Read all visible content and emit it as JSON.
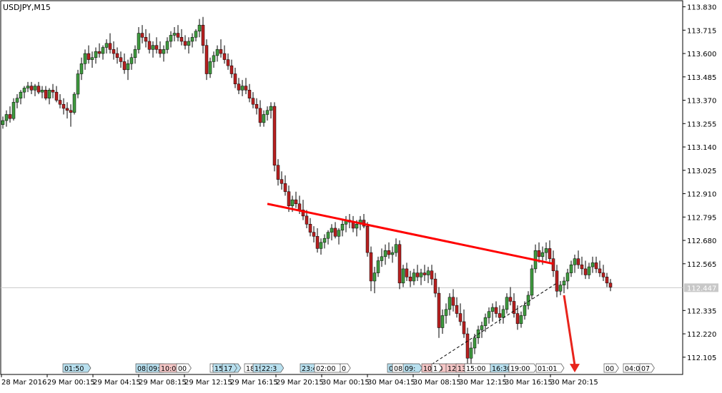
{
  "window": {
    "symbol_label": "USDJPY,M15"
  },
  "chart_data": {
    "type": "candlestick",
    "symbol": "USDJPY",
    "timeframe": "M15",
    "y_ticks": [
      "113.830",
      "113.715",
      "113.600",
      "113.485",
      "113.370",
      "113.255",
      "113.140",
      "113.025",
      "112.910",
      "112.795",
      "112.680",
      "112.565",
      "112.447",
      "112.335",
      "112.220",
      "112.105"
    ],
    "ylim": [
      112.02,
      113.86
    ],
    "current_price": "112.447",
    "x_ticks": [
      "28 Mar 2016",
      "29 Mar 00:15",
      "29 Mar 04:15",
      "29 Mar 08:15",
      "29 Mar 12:15",
      "29 Mar 16:15",
      "29 Mar 20:15",
      "30 Mar 00:15",
      "30 Mar 04:15",
      "30 Mar 08:15",
      "30 Mar 12:15",
      "30 Mar 16:15",
      "30 Mar 20:15"
    ],
    "candles": [
      [
        113.25,
        113.29,
        113.23,
        113.27
      ],
      [
        113.27,
        113.32,
        113.24,
        113.3
      ],
      [
        113.3,
        113.34,
        113.26,
        113.28
      ],
      [
        113.28,
        113.38,
        113.27,
        113.36
      ],
      [
        113.36,
        113.4,
        113.33,
        113.38
      ],
      [
        113.38,
        113.42,
        113.35,
        113.41
      ],
      [
        113.41,
        113.44,
        113.38,
        113.43
      ],
      [
        113.43,
        113.46,
        113.41,
        113.44
      ],
      [
        113.44,
        113.46,
        113.4,
        113.42
      ],
      [
        113.42,
        113.45,
        113.39,
        113.44
      ],
      [
        113.44,
        113.46,
        113.4,
        113.41
      ],
      [
        113.41,
        113.44,
        113.38,
        113.42
      ],
      [
        113.42,
        113.44,
        113.37,
        113.38
      ],
      [
        113.38,
        113.43,
        113.35,
        113.42
      ],
      [
        113.42,
        113.45,
        113.38,
        113.41
      ],
      [
        113.41,
        113.44,
        113.36,
        113.37
      ],
      [
        113.37,
        113.4,
        113.33,
        113.35
      ],
      [
        113.35,
        113.38,
        113.3,
        113.33
      ],
      [
        113.33,
        113.36,
        113.28,
        113.32
      ],
      [
        113.32,
        113.35,
        113.24,
        113.31
      ],
      [
        113.31,
        113.41,
        113.3,
        113.4
      ],
      [
        113.4,
        113.52,
        113.38,
        113.5
      ],
      [
        113.5,
        113.58,
        113.47,
        113.55
      ],
      [
        113.55,
        113.62,
        113.52,
        113.6
      ],
      [
        113.6,
        113.64,
        113.55,
        113.57
      ],
      [
        113.57,
        113.61,
        113.53,
        113.58
      ],
      [
        113.58,
        113.63,
        113.55,
        113.61
      ],
      [
        113.61,
        113.65,
        113.58,
        113.6
      ],
      [
        113.6,
        113.64,
        113.57,
        113.63
      ],
      [
        113.63,
        113.67,
        113.6,
        113.65
      ],
      [
        113.65,
        113.7,
        113.6,
        113.62
      ],
      [
        113.62,
        113.66,
        113.57,
        113.6
      ],
      [
        113.6,
        113.63,
        113.55,
        113.58
      ],
      [
        113.58,
        113.61,
        113.53,
        113.56
      ],
      [
        113.56,
        113.6,
        113.5,
        113.52
      ],
      [
        113.52,
        113.57,
        113.47,
        113.55
      ],
      [
        113.55,
        113.6,
        113.52,
        113.58
      ],
      [
        113.58,
        113.64,
        113.55,
        113.62
      ],
      [
        113.62,
        113.73,
        113.6,
        113.7
      ],
      [
        113.7,
        113.74,
        113.65,
        113.68
      ],
      [
        113.68,
        113.72,
        113.63,
        113.66
      ],
      [
        113.66,
        113.7,
        113.6,
        113.62
      ],
      [
        113.62,
        113.66,
        113.58,
        113.64
      ],
      [
        113.64,
        113.68,
        113.6,
        113.62
      ],
      [
        113.62,
        113.66,
        113.58,
        113.6
      ],
      [
        113.6,
        113.64,
        113.56,
        113.62
      ],
      [
        113.62,
        113.68,
        113.6,
        113.66
      ],
      [
        113.66,
        113.71,
        113.63,
        113.69
      ],
      [
        113.69,
        113.73,
        113.66,
        113.7
      ],
      [
        113.7,
        113.74,
        113.66,
        113.68
      ],
      [
        113.68,
        113.72,
        113.64,
        113.66
      ],
      [
        113.66,
        113.69,
        113.62,
        113.64
      ],
      [
        113.64,
        113.68,
        113.6,
        113.66
      ],
      [
        113.66,
        113.7,
        113.63,
        113.68
      ],
      [
        113.68,
        113.72,
        113.66,
        113.71
      ],
      [
        113.71,
        113.77,
        113.68,
        113.74
      ],
      [
        113.74,
        113.78,
        113.6,
        113.64
      ],
      [
        113.64,
        113.67,
        113.47,
        113.5
      ],
      [
        113.5,
        113.58,
        113.48,
        113.56
      ],
      [
        113.56,
        113.61,
        113.53,
        113.59
      ],
      [
        113.59,
        113.64,
        113.56,
        113.62
      ],
      [
        113.62,
        113.67,
        113.58,
        113.6
      ],
      [
        113.6,
        113.64,
        113.55,
        113.57
      ],
      [
        113.57,
        113.6,
        113.52,
        113.54
      ],
      [
        113.54,
        113.57,
        113.48,
        113.5
      ],
      [
        113.5,
        113.53,
        113.43,
        113.45
      ],
      [
        113.45,
        113.48,
        113.4,
        113.42
      ],
      [
        113.42,
        113.47,
        113.39,
        113.44
      ],
      [
        113.44,
        113.48,
        113.4,
        113.42
      ],
      [
        113.42,
        113.45,
        113.36,
        113.38
      ],
      [
        113.38,
        113.41,
        113.33,
        113.35
      ],
      [
        113.35,
        113.38,
        113.3,
        113.33
      ],
      [
        113.33,
        113.37,
        113.24,
        113.26
      ],
      [
        113.26,
        113.32,
        113.24,
        113.3
      ],
      [
        113.3,
        113.34,
        113.27,
        113.32
      ],
      [
        113.32,
        113.36,
        113.28,
        113.34
      ],
      [
        113.34,
        113.36,
        113.02,
        113.05
      ],
      [
        113.05,
        113.08,
        112.95,
        112.98
      ],
      [
        112.98,
        113.02,
        112.93,
        112.96
      ],
      [
        112.96,
        113.0,
        112.9,
        112.92
      ],
      [
        112.92,
        112.95,
        112.82,
        112.85
      ],
      [
        112.85,
        112.9,
        112.82,
        112.88
      ],
      [
        112.88,
        112.92,
        112.84,
        112.86
      ],
      [
        112.86,
        112.9,
        112.81,
        112.83
      ],
      [
        112.83,
        112.88,
        112.78,
        112.8
      ],
      [
        112.8,
        112.83,
        112.74,
        112.76
      ],
      [
        112.76,
        112.79,
        112.7,
        112.72
      ],
      [
        112.72,
        112.75,
        112.67,
        112.7
      ],
      [
        112.7,
        112.74,
        112.62,
        112.64
      ],
      [
        112.64,
        112.69,
        112.61,
        112.67
      ],
      [
        112.67,
        112.71,
        112.64,
        112.69
      ],
      [
        112.69,
        112.73,
        112.66,
        112.72
      ],
      [
        112.72,
        112.76,
        112.68,
        112.74
      ],
      [
        112.74,
        112.77,
        112.69,
        112.7
      ],
      [
        112.7,
        112.74,
        112.66,
        112.73
      ],
      [
        112.73,
        112.78,
        112.7,
        112.76
      ],
      [
        112.76,
        112.8,
        112.72,
        112.78
      ],
      [
        112.78,
        112.81,
        112.74,
        112.77
      ],
      [
        112.77,
        112.8,
        112.72,
        112.74
      ],
      [
        112.74,
        112.78,
        112.7,
        112.76
      ],
      [
        112.76,
        112.8,
        112.73,
        112.78
      ],
      [
        112.78,
        112.81,
        112.74,
        112.75
      ],
      [
        112.75,
        112.77,
        112.6,
        112.62
      ],
      [
        112.62,
        112.65,
        112.43,
        112.48
      ],
      [
        112.48,
        112.55,
        112.42,
        112.52
      ],
      [
        112.52,
        112.6,
        112.5,
        112.58
      ],
      [
        112.58,
        112.64,
        112.55,
        112.6
      ],
      [
        112.6,
        112.66,
        112.56,
        112.63
      ],
      [
        112.63,
        112.67,
        112.59,
        112.61
      ],
      [
        112.61,
        112.65,
        112.57,
        112.62
      ],
      [
        112.62,
        112.69,
        112.6,
        112.66
      ],
      [
        112.66,
        112.68,
        112.44,
        112.47
      ],
      [
        112.47,
        112.56,
        112.45,
        112.54
      ],
      [
        112.54,
        112.57,
        112.48,
        112.5
      ],
      [
        112.5,
        112.53,
        112.45,
        112.48
      ],
      [
        112.48,
        112.54,
        112.46,
        112.52
      ],
      [
        112.52,
        112.56,
        112.48,
        112.5
      ],
      [
        112.5,
        112.54,
        112.46,
        112.52
      ],
      [
        112.52,
        112.56,
        112.48,
        112.51
      ],
      [
        112.51,
        112.55,
        112.47,
        112.53
      ],
      [
        112.53,
        112.56,
        112.46,
        112.49
      ],
      [
        112.49,
        112.52,
        112.4,
        112.42
      ],
      [
        112.42,
        112.45,
        112.2,
        112.25
      ],
      [
        112.25,
        112.34,
        112.22,
        112.31
      ],
      [
        112.31,
        112.37,
        112.27,
        112.34
      ],
      [
        112.34,
        112.42,
        112.31,
        112.4
      ],
      [
        112.4,
        112.44,
        112.33,
        112.36
      ],
      [
        112.36,
        112.4,
        112.3,
        112.32
      ],
      [
        112.32,
        112.37,
        112.26,
        112.28
      ],
      [
        112.28,
        112.34,
        112.2,
        112.22
      ],
      [
        112.22,
        112.25,
        112.07,
        112.1
      ],
      [
        112.1,
        112.18,
        112.07,
        112.15
      ],
      [
        112.15,
        112.22,
        112.12,
        112.2
      ],
      [
        112.2,
        112.26,
        112.17,
        112.24
      ],
      [
        112.24,
        112.28,
        112.2,
        112.26
      ],
      [
        112.26,
        112.32,
        112.23,
        112.3
      ],
      [
        112.3,
        112.35,
        112.27,
        112.33
      ],
      [
        112.33,
        112.37,
        112.28,
        112.35
      ],
      [
        112.35,
        112.38,
        112.3,
        112.32
      ],
      [
        112.32,
        112.36,
        112.27,
        112.3
      ],
      [
        112.3,
        112.36,
        112.27,
        112.34
      ],
      [
        112.34,
        112.42,
        112.32,
        112.4
      ],
      [
        112.4,
        112.45,
        112.36,
        112.38
      ],
      [
        112.38,
        112.42,
        112.3,
        112.32
      ],
      [
        112.32,
        112.36,
        112.24,
        112.27
      ],
      [
        112.27,
        112.33,
        112.25,
        112.31
      ],
      [
        112.31,
        112.38,
        112.29,
        112.36
      ],
      [
        112.36,
        112.43,
        112.34,
        112.41
      ],
      [
        112.41,
        112.56,
        112.39,
        112.54
      ],
      [
        112.54,
        112.66,
        112.52,
        112.63
      ],
      [
        112.63,
        112.67,
        112.57,
        112.6
      ],
      [
        112.6,
        112.65,
        112.56,
        112.62
      ],
      [
        112.62,
        112.67,
        112.58,
        112.64
      ],
      [
        112.64,
        112.68,
        112.57,
        112.59
      ],
      [
        112.59,
        112.63,
        112.5,
        112.53
      ],
      [
        112.53,
        112.56,
        112.4,
        112.43
      ],
      [
        112.43,
        112.48,
        112.41,
        112.46
      ],
      [
        112.46,
        112.5,
        112.42,
        112.48
      ],
      [
        112.48,
        112.54,
        112.44,
        112.52
      ],
      [
        112.52,
        112.58,
        112.5,
        112.56
      ],
      [
        112.56,
        112.61,
        112.52,
        112.59
      ],
      [
        112.59,
        112.63,
        112.54,
        112.56
      ],
      [
        112.56,
        112.6,
        112.51,
        112.54
      ],
      [
        112.54,
        112.58,
        112.49,
        112.51
      ],
      [
        112.51,
        112.57,
        112.49,
        112.55
      ],
      [
        112.55,
        112.6,
        112.52,
        112.57
      ],
      [
        112.57,
        112.6,
        112.52,
        112.54
      ],
      [
        112.54,
        112.58,
        112.5,
        112.52
      ],
      [
        112.52,
        112.56,
        112.48,
        112.5
      ],
      [
        112.5,
        112.52,
        112.45,
        112.47
      ],
      [
        112.47,
        112.49,
        112.43,
        112.45
      ]
    ],
    "trendline": {
      "from": [
        74,
        112.86
      ],
      "to": [
        154,
        112.565
      ],
      "color": "#ff0000"
    },
    "dashed_line": {
      "from": [
        120,
        112.07
      ],
      "to": [
        155,
        112.47
      ],
      "color": "#000000"
    },
    "arrow": {
      "from_index": 157,
      "from": 112.41,
      "to_index": 160,
      "to": 112.03,
      "color": "#e8241c"
    },
    "session_markers": [
      {
        "text": "01:50",
        "color": "#b8e0ef"
      },
      {
        "text": "08:",
        "color": "#b8e0ef"
      },
      {
        "text": "09:",
        "color": "#b8e0ef"
      },
      {
        "text": "10:00",
        "color": "#f5c6c6"
      },
      {
        "text": "00",
        "color": "#ffffff"
      },
      {
        "text": "1",
        "color": "#ffffff"
      },
      {
        "text": "15:30",
        "color": "#b8e0ef"
      },
      {
        "text": "17",
        "color": "#b8e0ef"
      },
      {
        "text": "18",
        "color": "#ffffff"
      },
      {
        "text": "19:00",
        "color": "#b8e0ef"
      },
      {
        "text": "22:3",
        "color": "#b8e0ef"
      },
      {
        "text": "23:45",
        "color": "#b8e0ef"
      },
      {
        "text": "02:00",
        "color": "#ffffff"
      },
      {
        "text": "0",
        "color": "#ffffff"
      },
      {
        "text": "06:30",
        "color": "#b8e0ef"
      },
      {
        "text": "08",
        "color": "#ffffff"
      },
      {
        "text": "09:",
        "color": "#b8e0ef"
      },
      {
        "text": "10:00",
        "color": "#f5c6c6"
      },
      {
        "text": "1",
        "color": "#ffffff"
      },
      {
        "text": "12:",
        "color": "#f5c6c6"
      },
      {
        "text": "13:00",
        "color": "#f5c6c6"
      },
      {
        "text": "15:00",
        "color": "#ffffff"
      },
      {
        "text": "16:30",
        "color": "#b8e0ef"
      },
      {
        "text": "19:00",
        "color": "#ffffff"
      },
      {
        "text": "01:01",
        "color": "#ffffff"
      },
      {
        "text": "00",
        "color": "#ffffff"
      },
      {
        "text": "04:00",
        "color": "#ffffff"
      },
      {
        "text": "07",
        "color": "#ffffff"
      }
    ],
    "colors": {
      "bull": "#3f9a3f",
      "bear": "#b82020",
      "wick": "#000000",
      "grid": "#c8c8c8",
      "current_label_bg": "#c8c8c8"
    },
    "legend": "none"
  }
}
